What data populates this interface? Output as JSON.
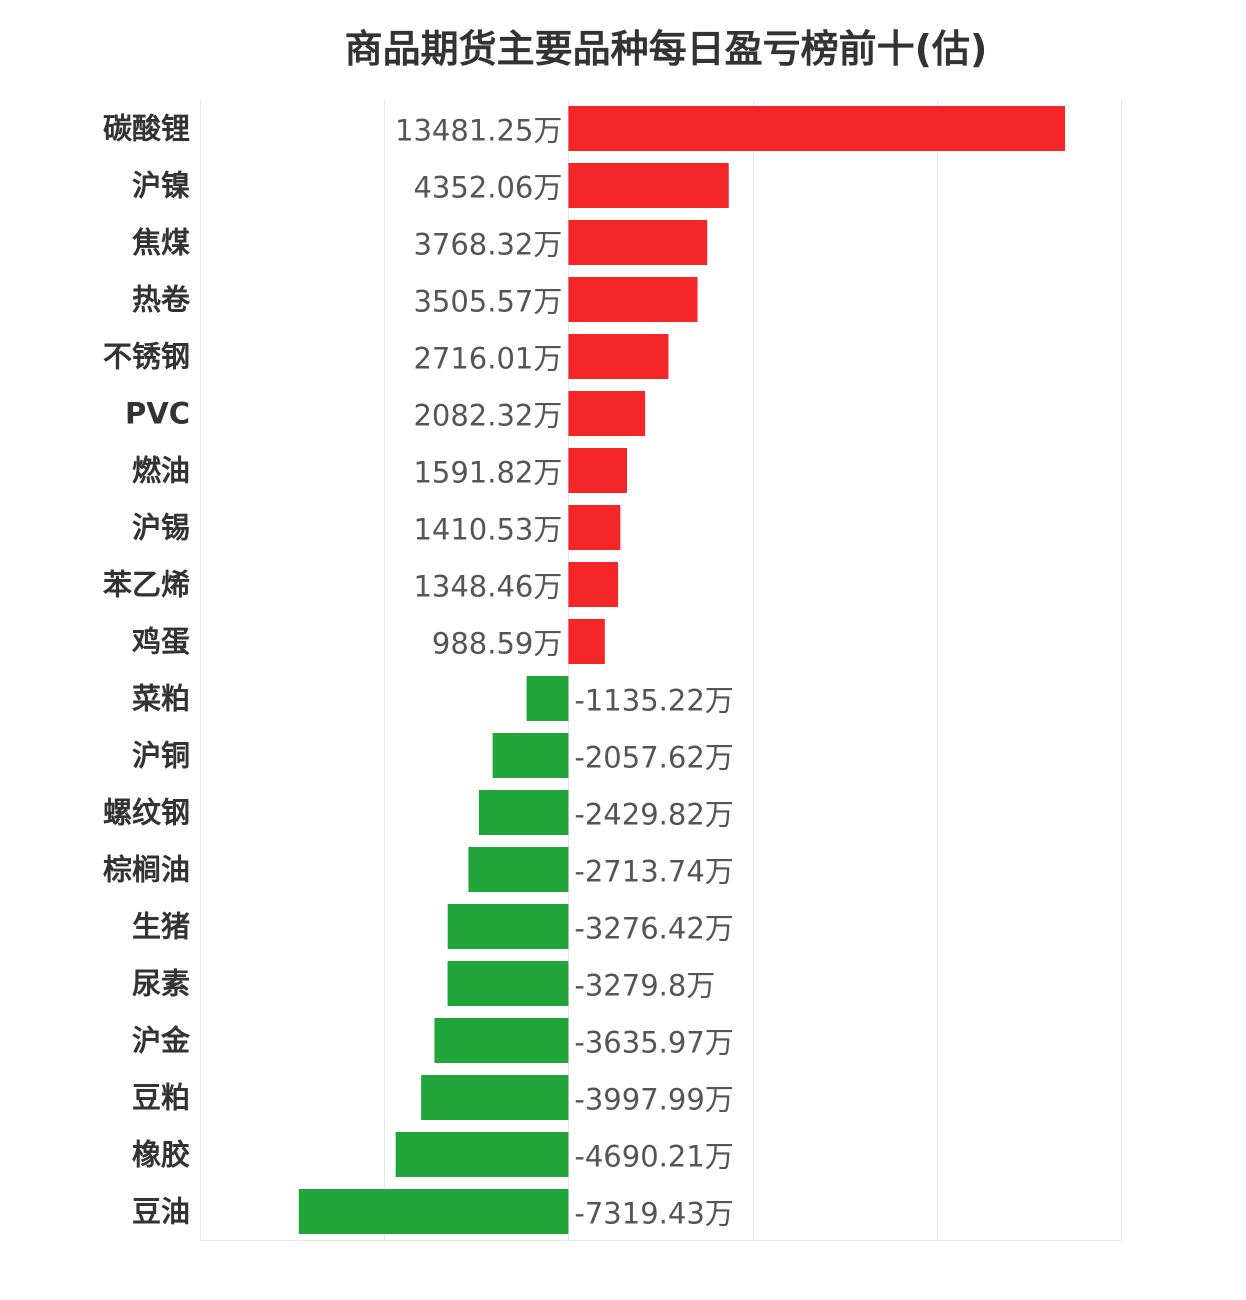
{
  "chart_data": {
    "type": "bar",
    "orientation": "horizontal",
    "title": "商品期货主要品种每日盈亏榜前十(估)",
    "xlabel": "",
    "ylabel": "",
    "unit": "万",
    "xlim": [
      -10000,
      15000
    ],
    "grid": true,
    "legend": "none",
    "categories": [
      "碳酸锂",
      "沪镍",
      "焦煤",
      "热卷",
      "不锈钢",
      "PVC",
      "燃油",
      "沪锡",
      "苯乙烯",
      "鸡蛋",
      "菜粕",
      "沪铜",
      "螺纹钢",
      "棕榈油",
      "生猪",
      "尿素",
      "沪金",
      "豆粕",
      "橡胶",
      "豆油"
    ],
    "values": [
      13481.25,
      4352.06,
      3768.32,
      3505.57,
      2716.01,
      2082.32,
      1591.82,
      1410.53,
      1348.46,
      988.59,
      -1135.22,
      -2057.62,
      -2429.82,
      -2713.74,
      -3276.42,
      -3279.8,
      -3635.97,
      -3997.99,
      -4690.21,
      -7319.43
    ],
    "value_labels": [
      "13481.25万",
      "4352.06万",
      "3768.32万",
      "3505.57万",
      "2716.01万",
      "2082.32万",
      "1591.82万",
      "1410.53万",
      "1348.46万",
      "988.59万",
      "-1135.22万",
      "-2057.62万",
      "-2429.82万",
      "-2713.74万",
      "-3276.42万",
      "-3279.8万",
      "-3635.97万",
      "-3997.99万",
      "-4690.21万",
      "-7319.43万"
    ],
    "colors": {
      "positive": "#f52628",
      "negative": "#21a53a"
    }
  }
}
